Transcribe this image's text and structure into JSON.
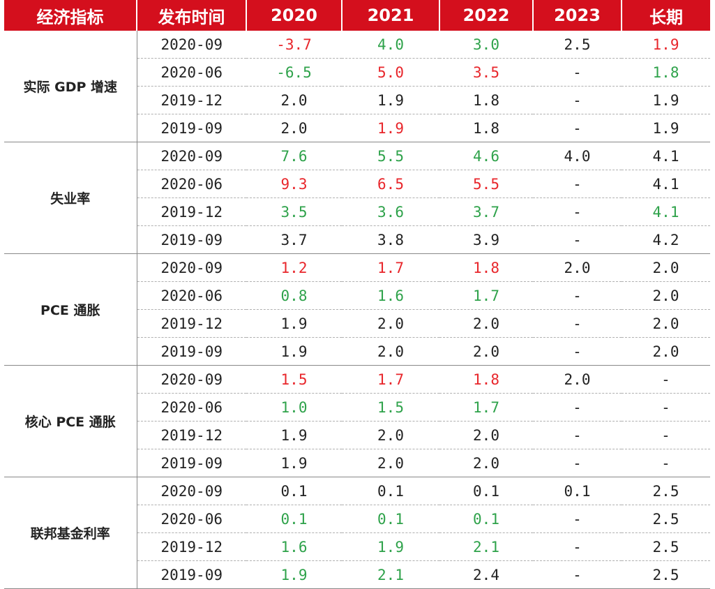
{
  "colors": {
    "header_bg": "#d40f1d",
    "header_text": "#ffffff",
    "up": "#e8262b",
    "down": "#2ea24a",
    "neutral": "#222222"
  },
  "chart_data": {
    "type": "table",
    "columns": [
      "经济指标",
      "发布时间",
      "2020",
      "2021",
      "2022",
      "2023",
      "长期"
    ],
    "groups": [
      {
        "indicator": "实际 GDP 增速",
        "rows": [
          {
            "date": "2020-09",
            "values": [
              {
                "v": "-3.7",
                "c": "red"
              },
              {
                "v": "4.0",
                "c": "green"
              },
              {
                "v": "3.0",
                "c": "green"
              },
              {
                "v": "2.5",
                "c": "black"
              },
              {
                "v": "1.9",
                "c": "red"
              }
            ]
          },
          {
            "date": "2020-06",
            "values": [
              {
                "v": "-6.5",
                "c": "green"
              },
              {
                "v": "5.0",
                "c": "red"
              },
              {
                "v": "3.5",
                "c": "red"
              },
              {
                "v": "-",
                "c": "black"
              },
              {
                "v": "1.8",
                "c": "green"
              }
            ]
          },
          {
            "date": "2019-12",
            "values": [
              {
                "v": "2.0",
                "c": "black"
              },
              {
                "v": "1.9",
                "c": "black"
              },
              {
                "v": "1.8",
                "c": "black"
              },
              {
                "v": "-",
                "c": "black"
              },
              {
                "v": "1.9",
                "c": "black"
              }
            ]
          },
          {
            "date": "2019-09",
            "values": [
              {
                "v": "2.0",
                "c": "black"
              },
              {
                "v": "1.9",
                "c": "red"
              },
              {
                "v": "1.8",
                "c": "black"
              },
              {
                "v": "-",
                "c": "black"
              },
              {
                "v": "1.9",
                "c": "black"
              }
            ]
          }
        ]
      },
      {
        "indicator": "失业率",
        "rows": [
          {
            "date": "2020-09",
            "values": [
              {
                "v": "7.6",
                "c": "green"
              },
              {
                "v": "5.5",
                "c": "green"
              },
              {
                "v": "4.6",
                "c": "green"
              },
              {
                "v": "4.0",
                "c": "black"
              },
              {
                "v": "4.1",
                "c": "black"
              }
            ]
          },
          {
            "date": "2020-06",
            "values": [
              {
                "v": "9.3",
                "c": "red"
              },
              {
                "v": "6.5",
                "c": "red"
              },
              {
                "v": "5.5",
                "c": "red"
              },
              {
                "v": "-",
                "c": "black"
              },
              {
                "v": "4.1",
                "c": "black"
              }
            ]
          },
          {
            "date": "2019-12",
            "values": [
              {
                "v": "3.5",
                "c": "green"
              },
              {
                "v": "3.6",
                "c": "green"
              },
              {
                "v": "3.7",
                "c": "green"
              },
              {
                "v": "-",
                "c": "black"
              },
              {
                "v": "4.1",
                "c": "green"
              }
            ]
          },
          {
            "date": "2019-09",
            "values": [
              {
                "v": "3.7",
                "c": "black"
              },
              {
                "v": "3.8",
                "c": "black"
              },
              {
                "v": "3.9",
                "c": "black"
              },
              {
                "v": "-",
                "c": "black"
              },
              {
                "v": "4.2",
                "c": "black"
              }
            ]
          }
        ]
      },
      {
        "indicator": "PCE 通胀",
        "rows": [
          {
            "date": "2020-09",
            "values": [
              {
                "v": "1.2",
                "c": "red"
              },
              {
                "v": "1.7",
                "c": "red"
              },
              {
                "v": "1.8",
                "c": "red"
              },
              {
                "v": "2.0",
                "c": "black"
              },
              {
                "v": "2.0",
                "c": "black"
              }
            ]
          },
          {
            "date": "2020-06",
            "values": [
              {
                "v": "0.8",
                "c": "green"
              },
              {
                "v": "1.6",
                "c": "green"
              },
              {
                "v": "1.7",
                "c": "green"
              },
              {
                "v": "-",
                "c": "black"
              },
              {
                "v": "2.0",
                "c": "black"
              }
            ]
          },
          {
            "date": "2019-12",
            "values": [
              {
                "v": "1.9",
                "c": "black"
              },
              {
                "v": "2.0",
                "c": "black"
              },
              {
                "v": "2.0",
                "c": "black"
              },
              {
                "v": "-",
                "c": "black"
              },
              {
                "v": "2.0",
                "c": "black"
              }
            ]
          },
          {
            "date": "2019-09",
            "values": [
              {
                "v": "1.9",
                "c": "black"
              },
              {
                "v": "2.0",
                "c": "black"
              },
              {
                "v": "2.0",
                "c": "black"
              },
              {
                "v": "-",
                "c": "black"
              },
              {
                "v": "2.0",
                "c": "black"
              }
            ]
          }
        ]
      },
      {
        "indicator": "核心 PCE 通胀",
        "rows": [
          {
            "date": "2020-09",
            "values": [
              {
                "v": "1.5",
                "c": "red"
              },
              {
                "v": "1.7",
                "c": "red"
              },
              {
                "v": "1.8",
                "c": "red"
              },
              {
                "v": "2.0",
                "c": "black"
              },
              {
                "v": "-",
                "c": "black"
              }
            ]
          },
          {
            "date": "2020-06",
            "values": [
              {
                "v": "1.0",
                "c": "green"
              },
              {
                "v": "1.5",
                "c": "green"
              },
              {
                "v": "1.7",
                "c": "green"
              },
              {
                "v": "-",
                "c": "black"
              },
              {
                "v": "-",
                "c": "black"
              }
            ]
          },
          {
            "date": "2019-12",
            "values": [
              {
                "v": "1.9",
                "c": "black"
              },
              {
                "v": "2.0",
                "c": "black"
              },
              {
                "v": "2.0",
                "c": "black"
              },
              {
                "v": "-",
                "c": "black"
              },
              {
                "v": "-",
                "c": "black"
              }
            ]
          },
          {
            "date": "2019-09",
            "values": [
              {
                "v": "1.9",
                "c": "black"
              },
              {
                "v": "2.0",
                "c": "black"
              },
              {
                "v": "2.0",
                "c": "black"
              },
              {
                "v": "-",
                "c": "black"
              },
              {
                "v": "-",
                "c": "black"
              }
            ]
          }
        ]
      },
      {
        "indicator": "联邦基金利率",
        "rows": [
          {
            "date": "2020-09",
            "values": [
              {
                "v": "0.1",
                "c": "black"
              },
              {
                "v": "0.1",
                "c": "black"
              },
              {
                "v": "0.1",
                "c": "black"
              },
              {
                "v": "0.1",
                "c": "black"
              },
              {
                "v": "2.5",
                "c": "black"
              }
            ]
          },
          {
            "date": "2020-06",
            "values": [
              {
                "v": "0.1",
                "c": "green"
              },
              {
                "v": "0.1",
                "c": "green"
              },
              {
                "v": "0.1",
                "c": "green"
              },
              {
                "v": "-",
                "c": "black"
              },
              {
                "v": "2.5",
                "c": "black"
              }
            ]
          },
          {
            "date": "2019-12",
            "values": [
              {
                "v": "1.6",
                "c": "green"
              },
              {
                "v": "1.9",
                "c": "green"
              },
              {
                "v": "2.1",
                "c": "green"
              },
              {
                "v": "-",
                "c": "black"
              },
              {
                "v": "2.5",
                "c": "black"
              }
            ]
          },
          {
            "date": "2019-09",
            "values": [
              {
                "v": "1.9",
                "c": "green"
              },
              {
                "v": "2.1",
                "c": "green"
              },
              {
                "v": "2.4",
                "c": "black"
              },
              {
                "v": "-",
                "c": "black"
              },
              {
                "v": "2.5",
                "c": "black"
              }
            ]
          }
        ]
      }
    ]
  }
}
